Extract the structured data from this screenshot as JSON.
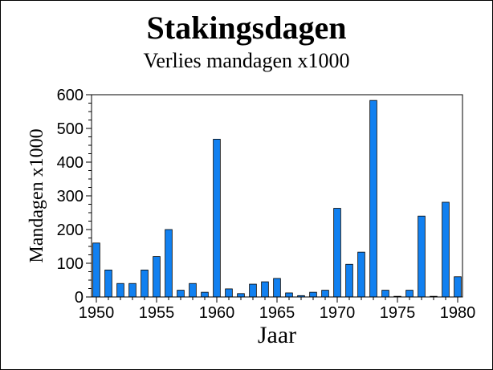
{
  "chart_data": {
    "type": "bar",
    "title": "Stakingsdagen",
    "subtitle": "Verlies mandagen x1000",
    "xlabel": "Jaar",
    "ylabel": "Mandagen x1000",
    "xlim": [
      1950,
      1980
    ],
    "ylim": [
      0,
      600
    ],
    "x_ticks": [
      "1950",
      "1955",
      "1960",
      "1965",
      "1970",
      "1975",
      "1980"
    ],
    "y_ticks": [
      "0",
      "100",
      "200",
      "300",
      "400",
      "500",
      "600"
    ],
    "grid": false,
    "bar_color": "#1180f0",
    "x": [
      1950,
      1951,
      1952,
      1953,
      1954,
      1955,
      1956,
      1957,
      1958,
      1959,
      1960,
      1961,
      1962,
      1963,
      1964,
      1965,
      1966,
      1967,
      1968,
      1969,
      1970,
      1971,
      1972,
      1973,
      1974,
      1975,
      1976,
      1977,
      1978,
      1979,
      1980
    ],
    "values": [
      160,
      80,
      40,
      40,
      80,
      120,
      200,
      20,
      40,
      14,
      468,
      24,
      10,
      38,
      45,
      55,
      12,
      4,
      14,
      20,
      263,
      97,
      133,
      583,
      20,
      2,
      20,
      240,
      2,
      281,
      60
    ]
  }
}
